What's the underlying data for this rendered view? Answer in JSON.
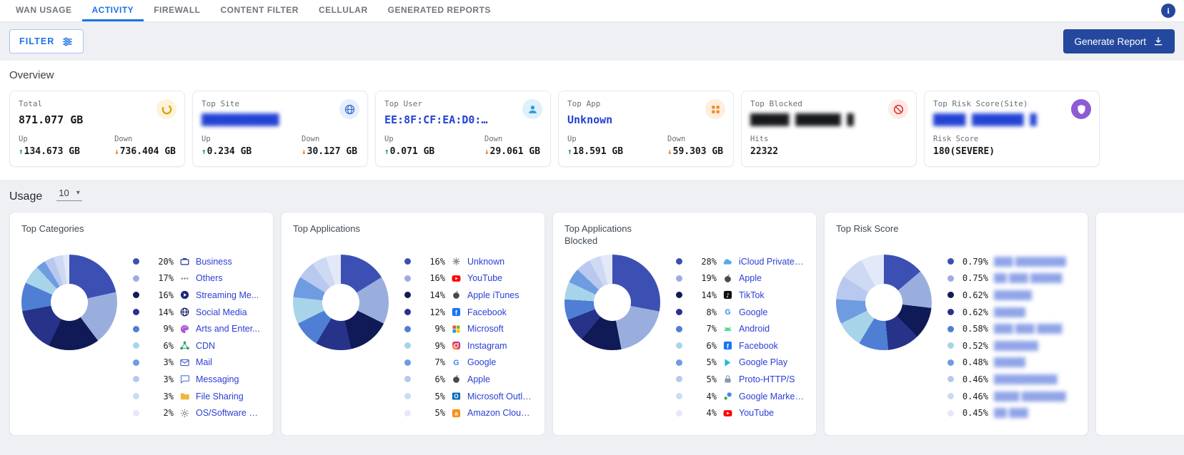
{
  "glyphs": {
    "up": "↑",
    "down": "↓",
    "info": "i",
    "caret": "▾"
  },
  "nav": {
    "tabs": [
      {
        "label": "WAN USAGE",
        "active": false
      },
      {
        "label": "ACTIVITY",
        "active": true
      },
      {
        "label": "FIREWALL",
        "active": false
      },
      {
        "label": "CONTENT FILTER",
        "active": false
      },
      {
        "label": "CELLULAR",
        "active": false
      },
      {
        "label": "GENERATED REPORTS",
        "active": false
      }
    ]
  },
  "toolbar": {
    "filter_label": "FILTER",
    "generate_report_label": "Generate Report"
  },
  "overview": {
    "title": "Overview",
    "cards": [
      {
        "label": "Total",
        "value": "871.077 GB",
        "value_style": "dark",
        "value_blurred": false,
        "icon": "data-usage",
        "icon_bg": "#fcf3da",
        "stats": [
          {
            "label": "Up",
            "arrow": "up",
            "value": "134.673 GB"
          },
          {
            "label": "Down",
            "arrow": "down",
            "value": "736.404 GB"
          }
        ]
      },
      {
        "label": "Top Site",
        "value": "████████████",
        "value_style": "blue",
        "value_blurred": true,
        "icon": "globe",
        "icon_bg": "#e6eefb",
        "stats": [
          {
            "label": "Up",
            "arrow": "up",
            "value": "0.234 GB"
          },
          {
            "label": "Down",
            "arrow": "down",
            "value": "30.127 GB"
          }
        ]
      },
      {
        "label": "Top User",
        "value": "EE:8F:CF:EA:D0:…",
        "value_style": "blue",
        "value_blurred": false,
        "icon": "person",
        "icon_bg": "#def0fa",
        "stats": [
          {
            "label": "Up",
            "arrow": "up",
            "value": "0.071 GB"
          },
          {
            "label": "Down",
            "arrow": "down",
            "value": "29.061 GB"
          }
        ]
      },
      {
        "label": "Top App",
        "value": "Unknown",
        "value_style": "blue",
        "value_blurred": false,
        "icon": "apps",
        "icon_bg": "#fdeede",
        "stats": [
          {
            "label": "Up",
            "arrow": "up",
            "value": "18.591 GB"
          },
          {
            "label": "Down",
            "arrow": "down",
            "value": "59.303 GB"
          }
        ]
      },
      {
        "label": "Top Blocked",
        "value": "██████ ███████ █",
        "value_style": "dark",
        "value_blurred": true,
        "icon": "block",
        "icon_bg": "#fde9e8",
        "stats": [
          {
            "label": "Hits",
            "arrow": null,
            "value": "22322"
          }
        ]
      },
      {
        "label": "Top Risk Score(Site)",
        "value": "█████ ████████ █",
        "value_style": "blue",
        "value_blurred": true,
        "icon": "shield",
        "icon_bg": "#8d5bd4",
        "stats": [
          {
            "label": "Risk Score",
            "arrow": null,
            "value": "180(SEVERE)"
          }
        ]
      }
    ]
  },
  "usage": {
    "title": "Usage",
    "page_size": "10",
    "palette": [
      "#3c50b4",
      "#9aaede",
      "#101a56",
      "#273289",
      "#4f7fd4",
      "#a8d4ea",
      "#6f9be0",
      "#b9c8ee",
      "#ced9f4",
      "#e3e9f9"
    ]
  },
  "chart_data": [
    {
      "type": "pie",
      "title": "Top Categories",
      "legend_position": "right",
      "labels": [
        "Business",
        "Others",
        "Streaming Me...",
        "Social Media",
        "Arts and Enter...",
        "CDN",
        "Mail",
        "Messaging",
        "File Sharing",
        "OS/Software U..."
      ],
      "values": [
        20,
        17,
        16,
        14,
        9,
        6,
        3,
        3,
        3,
        2
      ],
      "pcts": [
        "20%",
        "17%",
        "16%",
        "14%",
        "9%",
        "6%",
        "3%",
        "3%",
        "3%",
        "2%"
      ],
      "legend_icons": [
        "business",
        "others",
        "streaming",
        "social",
        "arts",
        "cdn",
        "mail",
        "messaging",
        "folder",
        "os"
      ],
      "labels_blurred": false
    },
    {
      "type": "pie",
      "title": "Top Applications",
      "legend_position": "right",
      "labels": [
        "Unknown",
        "YouTube",
        "Apple iTunes",
        "Facebook",
        "Microsoft",
        "Instagram",
        "Google",
        "Apple",
        "Microsoft Outlo...",
        "Amazon Cloud..."
      ],
      "values": [
        16,
        16,
        14,
        12,
        9,
        9,
        7,
        6,
        5,
        5
      ],
      "pcts": [
        "16%",
        "16%",
        "14%",
        "12%",
        "9%",
        "9%",
        "7%",
        "6%",
        "5%",
        "5%"
      ],
      "legend_icons": [
        "unknown",
        "youtube",
        "apple",
        "facebook",
        "microsoft",
        "instagram",
        "google",
        "apple",
        "outlook",
        "amazon"
      ],
      "labels_blurred": false
    },
    {
      "type": "pie",
      "title": "Top Applications Blocked",
      "legend_position": "right",
      "labels": [
        "iCloud Private R...",
        "Apple",
        "TikTok",
        "Google",
        "Android",
        "Facebook",
        "Google Play",
        "Proto-HTTP/S",
        "Google Marketi...",
        "YouTube"
      ],
      "values": [
        28,
        19,
        14,
        8,
        7,
        6,
        5,
        5,
        4,
        4
      ],
      "pcts": [
        "28%",
        "19%",
        "14%",
        "8%",
        "7%",
        "6%",
        "5%",
        "5%",
        "4%",
        "4%"
      ],
      "legend_icons": [
        "icloud",
        "apple",
        "tiktok",
        "google",
        "android",
        "facebook",
        "gplay",
        "https",
        "gmarketing",
        "youtube"
      ],
      "labels_blurred": false
    },
    {
      "type": "pie",
      "title": "Top Risk Score",
      "legend_position": "right",
      "labels": [
        "███ ████████",
        "██ ███ █████",
        "██████",
        "█████",
        "███ ███ ████",
        "███████",
        "█████",
        "██████████",
        "████ ███████",
        "██ ███"
      ],
      "values": [
        0.79,
        0.75,
        0.62,
        0.62,
        0.58,
        0.52,
        0.48,
        0.46,
        0.46,
        0.45
      ],
      "pcts": [
        "0.79%",
        "0.75%",
        "0.62%",
        "0.62%",
        "0.58%",
        "0.52%",
        "0.48%",
        "0.46%",
        "0.46%",
        "0.45%"
      ],
      "legend_icons": null,
      "labels_blurred": true
    }
  ]
}
